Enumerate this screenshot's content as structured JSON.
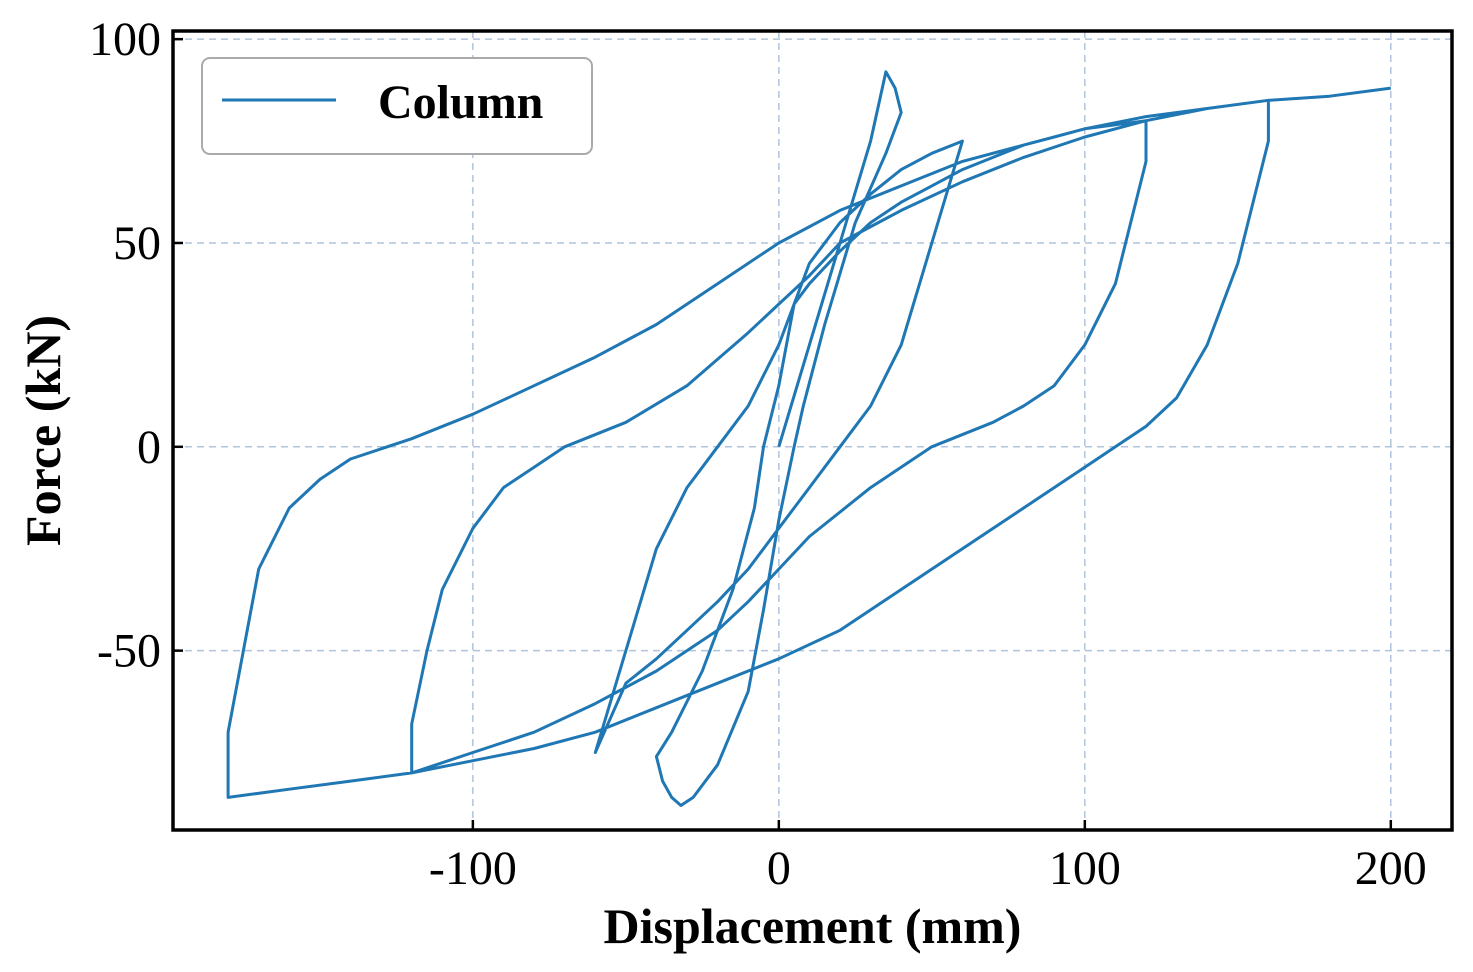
{
  "chart_data": {
    "type": "line",
    "xlabel": "Displacement (mm)",
    "ylabel": "Force (kN)",
    "xlim": [
      -198,
      220
    ],
    "ylim": [
      -94,
      102
    ],
    "xticks": [
      -100,
      0,
      100,
      200
    ],
    "xtick_labels": [
      "-100",
      "0",
      "100",
      "200"
    ],
    "yticks": [
      -50,
      0,
      50,
      100
    ],
    "ytick_labels": [
      "-50",
      "0",
      "50",
      "100"
    ],
    "grid": true,
    "legend": {
      "position": "top-left",
      "entries": [
        "Column"
      ]
    },
    "colors": {
      "series": "#1f77b4",
      "grid": "#b0c4de",
      "axes": "#000000"
    },
    "series": [
      {
        "name": "Column",
        "x": [
          0,
          10,
          20,
          30,
          35,
          38,
          40,
          35,
          25,
          15,
          8,
          5,
          0,
          -5,
          -10,
          -20,
          -28,
          -32,
          -35,
          -38,
          -40,
          -35,
          -25,
          -15,
          -8,
          -5,
          0,
          5,
          10,
          20,
          30,
          40,
          50,
          60,
          50,
          40,
          30,
          20,
          10,
          0,
          -10,
          -20,
          -30,
          -40,
          -50,
          -60,
          -50,
          -40,
          -30,
          -20,
          -10,
          0,
          5,
          10,
          20,
          30,
          40,
          50,
          60,
          70,
          80,
          90,
          100,
          110,
          120,
          120,
          115,
          110,
          100,
          90,
          80,
          70,
          50,
          30,
          10,
          0,
          -10,
          -20,
          -40,
          -60,
          -80,
          -100,
          -120,
          -120,
          -115,
          -110,
          -100,
          -90,
          -80,
          -70,
          -50,
          -30,
          -10,
          0,
          10,
          20,
          40,
          60,
          80,
          100,
          120,
          140,
          160,
          160,
          155,
          150,
          140,
          130,
          120,
          110,
          100,
          80,
          60,
          40,
          20,
          0,
          -20,
          -40,
          -60,
          -80,
          -100,
          -120,
          -140,
          -160,
          -180,
          -180,
          -175,
          -170,
          -160,
          -150,
          -140,
          -120,
          -100,
          -80,
          -60,
          -40,
          -20,
          0,
          20,
          40,
          60,
          80,
          100,
          120,
          140,
          160,
          180,
          200
        ],
        "y": [
          0,
          25,
          50,
          75,
          92,
          88,
          82,
          72,
          55,
          30,
          10,
          0,
          -18,
          -40,
          -60,
          -78,
          -86,
          -88,
          -86,
          -82,
          -76,
          -70,
          -55,
          -35,
          -15,
          0,
          15,
          35,
          45,
          55,
          62,
          68,
          72,
          75,
          50,
          25,
          10,
          0,
          -10,
          -20,
          -30,
          -38,
          -45,
          -52,
          -58,
          -75,
          -50,
          -25,
          -10,
          0,
          10,
          25,
          35,
          40,
          48,
          55,
          60,
          64,
          68,
          71,
          74,
          76,
          78,
          79,
          80,
          70,
          55,
          40,
          25,
          15,
          10,
          6,
          0,
          -10,
          -22,
          -30,
          -38,
          -45,
          -55,
          -63,
          -70,
          -75,
          -80,
          -68,
          -50,
          -35,
          -20,
          -10,
          -5,
          0,
          6,
          15,
          28,
          35,
          42,
          50,
          58,
          65,
          71,
          76,
          80,
          83,
          85,
          75,
          60,
          45,
          25,
          12,
          5,
          0,
          -5,
          -15,
          -25,
          -35,
          -45,
          -52,
          -58,
          -64,
          -70,
          -74,
          -77,
          -80,
          -82,
          -84,
          -86,
          -70,
          -50,
          -30,
          -15,
          -8,
          -3,
          2,
          8,
          15,
          22,
          30,
          40,
          50,
          58,
          64,
          70,
          74,
          78,
          81,
          83,
          85,
          86,
          88
        ]
      }
    ]
  }
}
